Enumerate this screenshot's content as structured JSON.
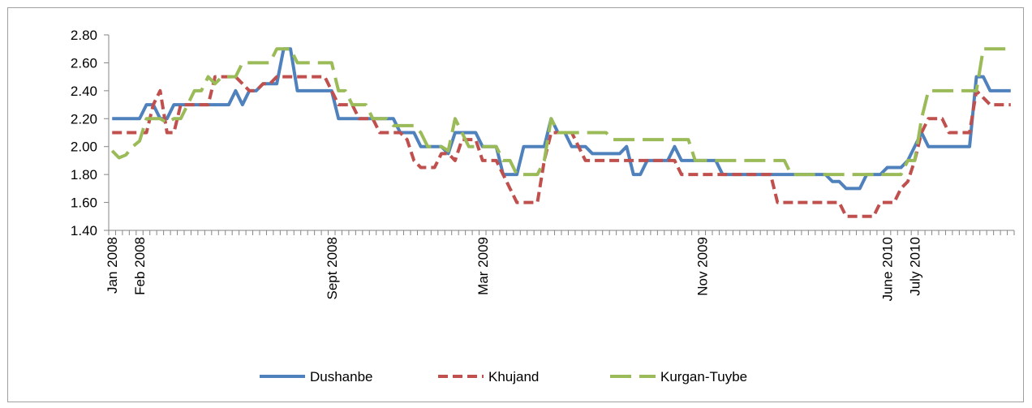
{
  "chart_data": {
    "type": "line",
    "categories": [
      "Jan 2008",
      null,
      null,
      null,
      "Feb 2008",
      null,
      null,
      null,
      null,
      null,
      null,
      null,
      null,
      null,
      null,
      null,
      null,
      null,
      null,
      null,
      null,
      null,
      null,
      null,
      null,
      null,
      null,
      null,
      null,
      null,
      null,
      null,
      "Sept 2008",
      null,
      null,
      null,
      null,
      null,
      null,
      null,
      null,
      null,
      null,
      null,
      null,
      null,
      null,
      null,
      null,
      null,
      null,
      null,
      null,
      null,
      "Mar 2009",
      null,
      null,
      null,
      null,
      null,
      null,
      null,
      null,
      null,
      null,
      null,
      null,
      null,
      null,
      null,
      null,
      null,
      null,
      null,
      null,
      null,
      null,
      null,
      null,
      null,
      null,
      null,
      null,
      null,
      null,
      null,
      "Nov 2009",
      null,
      null,
      null,
      null,
      null,
      null,
      null,
      null,
      null,
      null,
      null,
      null,
      null,
      null,
      null,
      null,
      null,
      null,
      null,
      null,
      null,
      null,
      null,
      null,
      null,
      null,
      "June 2010",
      null,
      null,
      null,
      "July 2010",
      null,
      null,
      null,
      null,
      null,
      null,
      null,
      null,
      null,
      null,
      null,
      null,
      null,
      null
    ],
    "series": [
      {
        "name": "Dushanbe",
        "color": "#4f81bd",
        "dash": "solid",
        "values": [
          2.2,
          2.2,
          2.2,
          2.2,
          2.2,
          2.3,
          2.3,
          2.2,
          2.2,
          2.3,
          2.3,
          2.3,
          2.3,
          2.3,
          2.3,
          2.3,
          2.3,
          2.3,
          2.4,
          2.3,
          2.4,
          2.4,
          2.45,
          2.45,
          2.45,
          2.7,
          2.7,
          2.4,
          2.4,
          2.4,
          2.4,
          2.4,
          2.4,
          2.2,
          2.2,
          2.2,
          2.2,
          2.2,
          2.2,
          2.2,
          2.2,
          2.2,
          2.1,
          2.1,
          2.1,
          2.0,
          2.0,
          2.0,
          2.0,
          1.95,
          2.1,
          2.1,
          2.1,
          2.1,
          2.0,
          2.0,
          2.0,
          1.8,
          1.8,
          1.8,
          2.0,
          2.0,
          2.0,
          2.0,
          2.2,
          2.1,
          2.1,
          2.0,
          2.0,
          2.0,
          1.95,
          1.95,
          1.95,
          1.95,
          1.95,
          2.0,
          1.8,
          1.8,
          1.9,
          1.9,
          1.9,
          1.9,
          2.0,
          1.9,
          1.9,
          1.9,
          1.9,
          1.9,
          1.9,
          1.8,
          1.8,
          1.8,
          1.8,
          1.8,
          1.8,
          1.8,
          1.8,
          1.8,
          1.8,
          1.8,
          1.8,
          1.8,
          1.8,
          1.8,
          1.8,
          1.75,
          1.75,
          1.7,
          1.7,
          1.7,
          1.8,
          1.8,
          1.8,
          1.85,
          1.85,
          1.85,
          1.9,
          2.0,
          2.1,
          2.0,
          2.0,
          2.0,
          2.0,
          2.0,
          2.0,
          2.0,
          2.5,
          2.5,
          2.4,
          2.4,
          2.4,
          2.4
        ]
      },
      {
        "name": "Khujand",
        "color": "#c0504d",
        "dash": "short",
        "values": [
          2.1,
          2.1,
          2.1,
          2.1,
          2.1,
          2.1,
          2.3,
          2.4,
          2.1,
          2.1,
          2.3,
          2.3,
          2.3,
          2.3,
          2.3,
          2.5,
          2.5,
          2.5,
          2.5,
          2.45,
          2.4,
          2.4,
          2.45,
          2.45,
          2.5,
          2.5,
          2.5,
          2.5,
          2.5,
          2.5,
          2.5,
          2.5,
          2.4,
          2.3,
          2.3,
          2.3,
          2.2,
          2.2,
          2.2,
          2.1,
          2.1,
          2.1,
          2.1,
          2.05,
          1.9,
          1.85,
          1.85,
          1.85,
          1.95,
          1.95,
          1.9,
          2.05,
          2.05,
          2.05,
          1.9,
          1.9,
          1.9,
          1.8,
          1.7,
          1.6,
          1.6,
          1.6,
          1.6,
          1.9,
          2.1,
          2.1,
          2.1,
          2.1,
          2.0,
          1.9,
          1.9,
          1.9,
          1.9,
          1.9,
          1.9,
          1.9,
          1.9,
          1.9,
          1.9,
          1.9,
          1.9,
          1.9,
          1.9,
          1.8,
          1.8,
          1.8,
          1.8,
          1.8,
          1.8,
          1.8,
          1.8,
          1.8,
          1.8,
          1.8,
          1.8,
          1.8,
          1.8,
          1.6,
          1.6,
          1.6,
          1.6,
          1.6,
          1.6,
          1.6,
          1.6,
          1.6,
          1.6,
          1.5,
          1.5,
          1.5,
          1.5,
          1.5,
          1.6,
          1.6,
          1.6,
          1.7,
          1.75,
          1.9,
          2.1,
          2.2,
          2.2,
          2.2,
          2.1,
          2.1,
          2.1,
          2.1,
          2.4,
          2.35,
          2.3,
          2.3,
          2.3,
          2.3
        ]
      },
      {
        "name": "Kurgan-Tuybe",
        "color": "#9bbb59",
        "dash": "long",
        "values": [
          1.97,
          1.92,
          1.94,
          2.0,
          2.04,
          2.2,
          2.2,
          2.2,
          2.17,
          2.2,
          2.2,
          2.3,
          2.4,
          2.4,
          2.5,
          2.45,
          2.5,
          2.5,
          2.5,
          2.6,
          2.6,
          2.6,
          2.6,
          2.6,
          2.7,
          2.7,
          2.7,
          2.6,
          2.6,
          2.6,
          2.6,
          2.6,
          2.6,
          2.4,
          2.4,
          2.3,
          2.3,
          2.3,
          2.2,
          2.2,
          2.2,
          2.15,
          2.15,
          2.15,
          2.15,
          2.1,
          2.0,
          2.0,
          2.0,
          1.97,
          2.2,
          2.1,
          2.0,
          2.0,
          2.0,
          2.0,
          2.0,
          1.9,
          1.9,
          1.8,
          1.8,
          1.8,
          1.8,
          1.9,
          2.2,
          2.1,
          2.1,
          2.1,
          2.1,
          2.1,
          2.1,
          2.1,
          2.1,
          2.05,
          2.05,
          2.05,
          2.05,
          2.05,
          2.05,
          2.05,
          2.05,
          2.05,
          2.05,
          2.05,
          2.05,
          1.9,
          1.9,
          1.9,
          1.9,
          1.9,
          1.9,
          1.9,
          1.9,
          1.9,
          1.9,
          1.9,
          1.9,
          1.9,
          1.9,
          1.8,
          1.8,
          1.8,
          1.8,
          1.8,
          1.8,
          1.8,
          1.8,
          1.8,
          1.8,
          1.8,
          1.8,
          1.8,
          1.8,
          1.8,
          1.8,
          1.8,
          1.9,
          1.9,
          2.2,
          2.4,
          2.4,
          2.4,
          2.4,
          2.4,
          2.4,
          2.4,
          2.4,
          2.7,
          2.7,
          2.7,
          2.7,
          2.7
        ]
      }
    ],
    "ylim": [
      1.4,
      2.8
    ],
    "yticks": [
      {
        "value": 1.4,
        "label": "1.40"
      },
      {
        "value": 1.6,
        "label": "1.60"
      },
      {
        "value": 1.8,
        "label": "1.80"
      },
      {
        "value": 2.0,
        "label": "2.00"
      },
      {
        "value": 2.2,
        "label": "2.20"
      },
      {
        "value": 2.4,
        "label": "2.40"
      },
      {
        "value": 2.6,
        "label": "2.60"
      },
      {
        "value": 2.8,
        "label": "2.80"
      }
    ],
    "grid": false,
    "legend": "bottom"
  }
}
